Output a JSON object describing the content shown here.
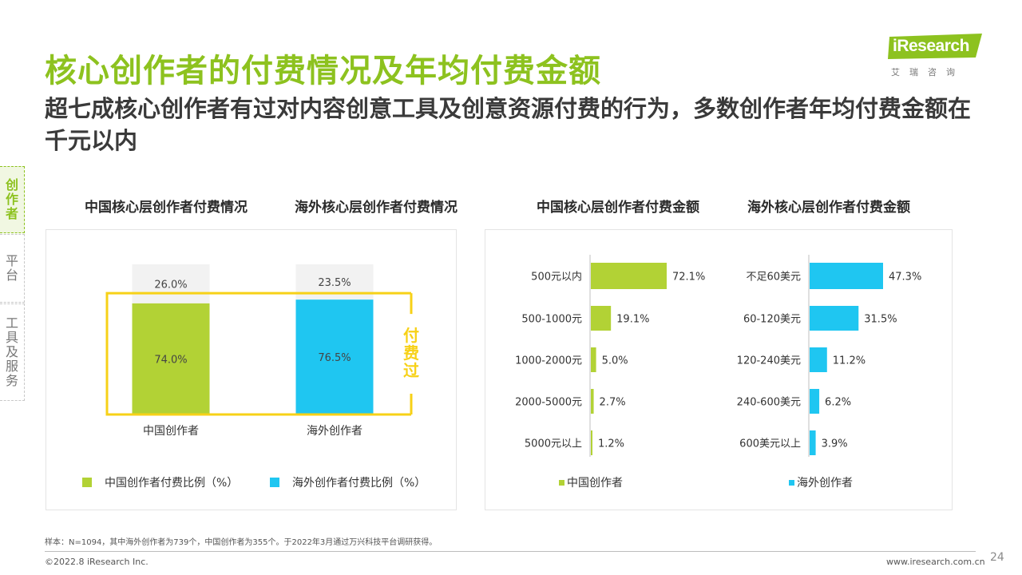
{
  "header": {
    "title": "核心创作者的付费情况及年均付费金额",
    "subtitle": "超七成核心创作者有过对内容创意工具及创意资源付费的行为，多数创作者年均付费金额在千元以内"
  },
  "logo": {
    "text": "iResearch",
    "subtext": "艾瑞咨询",
    "color": "#8dc21f"
  },
  "side_nav": [
    {
      "label": "创作者",
      "active": true
    },
    {
      "label": "平台",
      "active": false
    },
    {
      "label": "工具及服务",
      "active": false
    }
  ],
  "colors": {
    "green": "#b2d235",
    "blue": "#1fc6f1",
    "gray": "#f2f2f2",
    "highlight": "#f7d117"
  },
  "panels": {
    "left_titles": [
      "中国核心层创作者付费情况",
      "海外核心层创作者付费情况"
    ],
    "right_titles": [
      "中国核心层创作者付费金额",
      "海外核心层创作者付费金额"
    ]
  },
  "highlight_label": "付费过",
  "chart_data": [
    {
      "type": "bar",
      "stacked": true,
      "categories": [
        "中国创作者",
        "海外创作者"
      ],
      "series": [
        {
          "name": "中国创作者付费比例（%）",
          "values": [
            74.0,
            76.5
          ],
          "labels": [
            "74.0%",
            "76.5%"
          ]
        },
        {
          "name": "",
          "values": [
            26.0,
            23.5
          ],
          "labels": [
            "26.0%",
            "23.5%"
          ]
        }
      ],
      "legend": [
        "中国创作者付费比例（%）",
        "海外创作者付费比例（%）"
      ],
      "ylim": [
        0,
        100
      ]
    },
    {
      "type": "bar",
      "orientation": "horizontal",
      "title": "中国核心层创作者付费金额",
      "categories": [
        "500元以内",
        "500-1000元",
        "1000-2000元",
        "2000-5000元",
        "5000元以上"
      ],
      "values": [
        72.1,
        19.1,
        5.0,
        2.7,
        1.2
      ],
      "labels": [
        "72.1%",
        "19.1%",
        "5.0%",
        "2.7%",
        "1.2%"
      ],
      "legend": "中国创作者"
    },
    {
      "type": "bar",
      "orientation": "horizontal",
      "title": "海外核心层创作者付费金额",
      "categories": [
        "不足60美元",
        "60-120美元",
        "120-240美元",
        "240-600美元",
        "600美元以上"
      ],
      "values": [
        47.3,
        31.5,
        11.2,
        6.2,
        3.9
      ],
      "labels": [
        "47.3%",
        "31.5%",
        "11.2%",
        "6.2%",
        "3.9%"
      ],
      "legend": "海外创作者"
    }
  ],
  "footer": {
    "note": "样本：N=1094，其中海外创作者为739个，中国创作者为355个。于2022年3月通过万兴科技平台调研获得。",
    "copyright": "©2022.8 iResearch Inc.",
    "site": "www.iresearch.com.cn",
    "page": "24"
  }
}
